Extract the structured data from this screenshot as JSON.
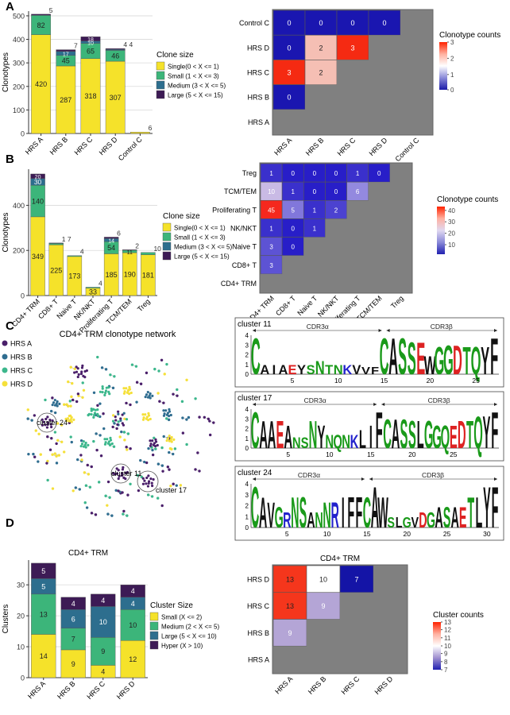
{
  "panel_letters": [
    "A",
    "B",
    "C",
    "D"
  ],
  "clone_legend": {
    "title": "Clone size",
    "items": [
      {
        "label": "Large (5 < X <= 15)",
        "color": "#3d1b55"
      },
      {
        "label": "Medium (3 < X <= 5)",
        "color": "#2d6e8e"
      },
      {
        "label": "Small (1 < X <= 3)",
        "color": "#3cb57a"
      },
      {
        "label": "Single(0 < X <= 1)",
        "color": "#f5e22a"
      }
    ]
  },
  "cluster_legend": {
    "title": "Cluster Size",
    "items": [
      {
        "label": "Hyper (X > 10)",
        "color": "#3d1b55"
      },
      {
        "label": "Large (5 < X <= 10)",
        "color": "#2d6e8e"
      },
      {
        "label": "Medium (2 < X <= 5)",
        "color": "#3cb57a"
      },
      {
        "label": "Small (X <= 2)",
        "color": "#f5e22a"
      }
    ]
  },
  "network": {
    "title": "CD4+ TRM clonotype network",
    "legend": [
      {
        "label": "HRS A",
        "color": "#4a1f6a"
      },
      {
        "label": "HRS B",
        "color": "#2f6d90"
      },
      {
        "label": "HRS C",
        "color": "#3cb78c"
      },
      {
        "label": "HRS D",
        "color": "#f5e03a"
      }
    ],
    "cluster_labels": [
      "cluster 24",
      "cluster 11",
      "cluster 17"
    ]
  },
  "logos": [
    {
      "title": "cluster 11",
      "seq": "CAIAEYSNTNKVVFCASSEWGGDTQYF",
      "cdr3a": "CDR3α",
      "cdr3b": "CDR3β",
      "xticks": [
        "5",
        "10",
        "15",
        "20",
        "25"
      ],
      "yticks": [
        "0",
        "1",
        "2",
        "3",
        "4"
      ]
    },
    {
      "title": "cluster 17",
      "seq": "CAAEANSNYNQNKLIFCASSLGGQEDTQYF",
      "cdr3a": "CDR3α",
      "cdr3b": "CDR3β",
      "xticks": [
        "5",
        "10",
        "15",
        "20",
        "25"
      ],
      "yticks": [
        "0",
        "1",
        "2",
        "3",
        "4"
      ]
    },
    {
      "title": "cluster 24",
      "seq": "CAVGRNSANNRIFFCAWSLGVDGASAETLYF",
      "cdr3a": "CDR3α",
      "cdr3b": "CDR3β",
      "xticks": [
        "5",
        "10",
        "15",
        "20",
        "25",
        "30"
      ],
      "yticks": [
        "0",
        "1",
        "2",
        "3",
        "4"
      ]
    }
  ],
  "chart_data": [
    {
      "type": "bar",
      "panel": "A",
      "ylabel": "Clonotypes",
      "ylim": [
        0,
        520
      ],
      "yticks": [
        0,
        100,
        200,
        300,
        400,
        500
      ],
      "categories": [
        "HRS A",
        "HRS B",
        "HRS C",
        "HRS D",
        "Control C"
      ],
      "series": [
        {
          "name": "Single(0 < X <= 1)",
          "values": [
            420,
            287,
            318,
            307,
            6
          ]
        },
        {
          "name": "Small (1 < X <= 3)",
          "values": [
            82,
            45,
            65,
            46,
            0
          ]
        },
        {
          "name": "Medium (3 < X <= 5)",
          "values": [
            0,
            17,
            10,
            4,
            0
          ]
        },
        {
          "name": "Large (5 < X <= 15)",
          "values": [
            5,
            7,
            18,
            4,
            0
          ]
        }
      ],
      "labels": [
        {
          "cat": 0,
          "series": 0,
          "text": "420"
        },
        {
          "cat": 0,
          "series": 1,
          "text": "82"
        },
        {
          "cat": 0,
          "top": true,
          "text": "5"
        },
        {
          "cat": 1,
          "series": 0,
          "text": "287"
        },
        {
          "cat": 1,
          "series": 1,
          "text": "45"
        },
        {
          "cat": 1,
          "series": 2,
          "text": "17"
        },
        {
          "cat": 1,
          "top": true,
          "text": "7"
        },
        {
          "cat": 2,
          "series": 0,
          "text": "318"
        },
        {
          "cat": 2,
          "series": 1,
          "text": "65"
        },
        {
          "cat": 2,
          "series": 2,
          "text": "10"
        },
        {
          "cat": 2,
          "series": 3,
          "text": "18"
        },
        {
          "cat": 3,
          "series": 0,
          "text": "307"
        },
        {
          "cat": 3,
          "series": 1,
          "text": "46"
        },
        {
          "cat": 3,
          "top": true,
          "text": "4 4"
        },
        {
          "cat": 4,
          "top": true,
          "text": "6"
        }
      ]
    },
    {
      "type": "heatmap",
      "panel": "A",
      "rows": [
        "Control C",
        "HRS D",
        "HRS C",
        "HRS B",
        "HRS A"
      ],
      "cols": [
        "HRS A",
        "HRS B",
        "HRS C",
        "HRS D",
        "Control C"
      ],
      "values": [
        [
          0,
          0,
          0,
          0,
          null
        ],
        [
          0,
          2,
          3,
          null,
          null
        ],
        [
          3,
          2,
          null,
          null,
          null
        ],
        [
          0,
          null,
          null,
          null,
          null
        ],
        [
          null,
          null,
          null,
          null,
          null
        ]
      ],
      "legend_title": "Clonotype counts",
      "legend_ticks": [
        "3",
        "2",
        "1",
        "0"
      ]
    },
    {
      "type": "bar",
      "panel": "B",
      "ylabel": "Clonotypes",
      "ylim": [
        0,
        560
      ],
      "yticks": [
        0,
        200,
        400
      ],
      "categories": [
        "CD4+ TRM",
        "CD8+ T",
        "Naive T",
        "NK/NKT",
        "Proliferating T",
        "TCM/TEM",
        "Treg"
      ],
      "series": [
        {
          "name": "Single(0 < X <= 1)",
          "values": [
            349,
            225,
            173,
            33,
            185,
            190,
            181
          ]
        },
        {
          "name": "Small (1 < X <= 3)",
          "values": [
            140,
            7,
            4,
            4,
            54,
            11,
            10
          ]
        },
        {
          "name": "Medium (3 < X <= 5)",
          "values": [
            30,
            0,
            0,
            0,
            14,
            0,
            0
          ]
        },
        {
          "name": "Large (5 < X <= 15)",
          "values": [
            20,
            1,
            0,
            0,
            6,
            2,
            0
          ]
        }
      ],
      "labels": [
        {
          "cat": 0,
          "series": 0,
          "text": "349"
        },
        {
          "cat": 0,
          "series": 1,
          "text": "140"
        },
        {
          "cat": 0,
          "series": 2,
          "text": "30"
        },
        {
          "cat": 0,
          "series": 3,
          "text": "20"
        },
        {
          "cat": 1,
          "series": 0,
          "text": "225"
        },
        {
          "cat": 1,
          "top": true,
          "text": "1 7"
        },
        {
          "cat": 2,
          "series": 0,
          "text": "173"
        },
        {
          "cat": 2,
          "top": true,
          "text": "4"
        },
        {
          "cat": 3,
          "series": 0,
          "text": "33"
        },
        {
          "cat": 3,
          "top": true,
          "text": "4"
        },
        {
          "cat": 4,
          "series": 0,
          "text": "185"
        },
        {
          "cat": 4,
          "series": 1,
          "text": "54"
        },
        {
          "cat": 4,
          "series": 2,
          "text": "14"
        },
        {
          "cat": 4,
          "top": true,
          "text": "6"
        },
        {
          "cat": 5,
          "series": 0,
          "text": "190"
        },
        {
          "cat": 5,
          "series": 1,
          "text": "11"
        },
        {
          "cat": 5,
          "top": true,
          "text": "2"
        },
        {
          "cat": 6,
          "series": 0,
          "text": "181"
        },
        {
          "cat": 6,
          "top": true,
          "text": "10"
        }
      ]
    },
    {
      "type": "heatmap",
      "panel": "B",
      "rows": [
        "Treg",
        "TCM/TEM",
        "Proliferating T",
        "NK/NKT",
        "Naive T",
        "CD8+ T",
        "CD4+ TRM"
      ],
      "cols": [
        "CD4+ TRM",
        "CD8+ T",
        "Naive T",
        "NK/NKT",
        "Proliferating T",
        "TCM/TEM",
        "Treg"
      ],
      "values": [
        [
          1,
          0,
          0,
          0,
          1,
          0,
          null
        ],
        [
          10,
          1,
          0,
          0,
          6,
          null,
          null
        ],
        [
          45,
          5,
          1,
          2,
          null,
          null,
          null
        ],
        [
          1,
          0,
          1,
          null,
          null,
          null,
          null
        ],
        [
          3,
          0,
          null,
          null,
          null,
          null,
          null
        ],
        [
          3,
          null,
          null,
          null,
          null,
          null,
          null
        ],
        [
          null,
          null,
          null,
          null,
          null,
          null,
          null
        ]
      ],
      "legend_title": "Clonotype counts",
      "legend_ticks": [
        "40",
        "30",
        "20",
        "10"
      ]
    },
    {
      "type": "bar",
      "panel": "D",
      "title": "CD4+ TRM",
      "ylabel": "Clusters",
      "ylim": [
        0,
        38
      ],
      "yticks": [
        0,
        10,
        20,
        30
      ],
      "categories": [
        "HRS A",
        "HRS B",
        "HRS C",
        "HRS D"
      ],
      "series": [
        {
          "name": "Small (X <= 2)",
          "values": [
            14,
            9,
            4,
            12
          ]
        },
        {
          "name": "Medium (2 < X <= 5)",
          "values": [
            13,
            7,
            9,
            10
          ]
        },
        {
          "name": "Large (5 < X <= 10)",
          "values": [
            5,
            6,
            10,
            4
          ]
        },
        {
          "name": "Hyper (X > 10)",
          "values": [
            5,
            4,
            4,
            4
          ]
        }
      ]
    },
    {
      "type": "heatmap",
      "panel": "D",
      "title": "CD4+ TRM",
      "rows": [
        "HRS D",
        "HRS C",
        "HRS B",
        "HRS A"
      ],
      "cols": [
        "HRS A",
        "HRS B",
        "HRS C",
        "HRS D"
      ],
      "values": [
        [
          13,
          10,
          7,
          null
        ],
        [
          13,
          9,
          null,
          null
        ],
        [
          9,
          null,
          null,
          null
        ],
        [
          null,
          null,
          null,
          null
        ]
      ],
      "legend_title": "Cluster counts",
      "legend_ticks": [
        "13",
        "12",
        "11",
        "10",
        "9",
        "8",
        "7"
      ]
    }
  ]
}
